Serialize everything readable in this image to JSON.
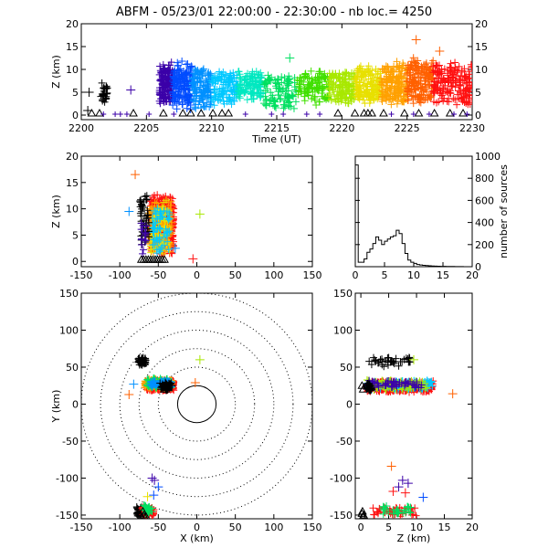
{
  "title": "ABFM - 05/23/01 22:00:00 - 22:30:00 - nb loc.=    4250",
  "chart_data": [
    {
      "type": "scatter",
      "id": "time-height",
      "title": "ABFM - 05/23/01 22:00:00 - 22:30:00 - nb loc.=    4250",
      "xlabel": "Time (UT)",
      "ylabel": "Z (km)",
      "xlim": [
        2200,
        2230
      ],
      "ylim": [
        -1,
        20
      ],
      "xticks": [
        2200,
        2205,
        2210,
        2215,
        2220,
        2225,
        2230
      ],
      "yticks": [
        0,
        5,
        10,
        15,
        20
      ],
      "color_by_time": true,
      "clusters": [
        {
          "x": [
            2201.5,
            2202.0
          ],
          "y": [
            2,
            8
          ],
          "n": 25,
          "color": "#000000"
        },
        {
          "x": [
            2206.0,
            2207.0
          ],
          "y": [
            2,
            12
          ],
          "n": 150,
          "color": "#3b00a8"
        },
        {
          "x": [
            2207.0,
            2208.5
          ],
          "y": [
            1,
            12
          ],
          "n": 150,
          "color": "#004cff"
        },
        {
          "x": [
            2208.5,
            2210.0
          ],
          "y": [
            1,
            11
          ],
          "n": 130,
          "color": "#0090ff"
        },
        {
          "x": [
            2210.0,
            2212.0
          ],
          "y": [
            2,
            10
          ],
          "n": 120,
          "color": "#00c8ff"
        },
        {
          "x": [
            2212.0,
            2214.0
          ],
          "y": [
            3,
            10
          ],
          "n": 110,
          "color": "#00e8c0"
        },
        {
          "x": [
            2214.0,
            2216.5
          ],
          "y": [
            1,
            9
          ],
          "n": 100,
          "color": "#00e060"
        },
        {
          "x": [
            2216.5,
            2219.0
          ],
          "y": [
            2,
            10
          ],
          "n": 110,
          "color": "#40e000"
        },
        {
          "x": [
            2219.0,
            2221.0
          ],
          "y": [
            2,
            10
          ],
          "n": 130,
          "color": "#a8e800"
        },
        {
          "x": [
            2221.0,
            2223.0
          ],
          "y": [
            2,
            11
          ],
          "n": 150,
          "color": "#e8e000"
        },
        {
          "x": [
            2223.0,
            2225.0
          ],
          "y": [
            2,
            12
          ],
          "n": 170,
          "color": "#ffa000"
        },
        {
          "x": [
            2225.0,
            2227.0
          ],
          "y": [
            2,
            13
          ],
          "n": 170,
          "color": "#ff6000"
        },
        {
          "x": [
            2227.0,
            2230.0
          ],
          "y": [
            2,
            12
          ],
          "n": 170,
          "color": "#ff1010"
        }
      ],
      "points": [
        {
          "x": 2200.6,
          "y": 5,
          "color": "#000000"
        },
        {
          "x": 2200.5,
          "y": 1,
          "color": "#000000"
        },
        {
          "x": 2203.8,
          "y": 5.5,
          "color": "#3b00a8"
        },
        {
          "x": 2225.7,
          "y": 16.5,
          "color": "#ff6000"
        },
        {
          "x": 2227.5,
          "y": 14,
          "color": "#ff6000"
        },
        {
          "x": 2216.0,
          "y": 12.5,
          "color": "#00e060"
        }
      ],
      "stations_x": [
        2200.8,
        2201.4,
        2204.0,
        2206.3,
        2207.8,
        2208.4,
        2209.2,
        2210.1,
        2210.8,
        2211.3,
        2219.7,
        2221.0,
        2221.7,
        2222.0,
        2222.3,
        2223.2,
        2224.8,
        2225.9,
        2227.1,
        2228.3,
        2229.3
      ],
      "ground_x": [
        2201.7,
        2202.6,
        2203.0,
        2203.5,
        2205.2,
        2207.1,
        2212.6,
        2214.6,
        2215.5,
        2217.3,
        2218.3,
        2223.8,
        2225.5,
        2226.7,
        2228.6,
        2229.6
      ]
    },
    {
      "type": "scatter",
      "id": "xz-projection",
      "xlabel": "",
      "ylabel": "Z (km)",
      "xlim": [
        -150,
        150
      ],
      "ylim": [
        -1,
        20
      ],
      "xticks": [
        -150,
        -100,
        -50,
        0,
        50,
        100,
        150
      ],
      "yticks": [
        0,
        5,
        10,
        15,
        20
      ],
      "clusters": [
        {
          "x": [
            -60,
            -30
          ],
          "y": [
            1,
            13
          ],
          "n": 400,
          "color": "#ff1010"
        },
        {
          "x": [
            -62,
            -32
          ],
          "y": [
            1,
            12
          ],
          "n": 160,
          "color": "#ffa000"
        },
        {
          "x": [
            -60,
            -35
          ],
          "y": [
            1,
            12
          ],
          "n": 80,
          "color": "#e8e000"
        },
        {
          "x": [
            -58,
            -35
          ],
          "y": [
            1,
            11
          ],
          "n": 60,
          "color": "#00c8ff"
        },
        {
          "x": [
            -74,
            -62
          ],
          "y": [
            2,
            14
          ],
          "n": 45,
          "color": "#000000"
        },
        {
          "x": [
            -74,
            -64
          ],
          "y": [
            1,
            8
          ],
          "n": 15,
          "color": "#3b00a8"
        }
      ],
      "points": [
        {
          "x": -80,
          "y": 16.5,
          "color": "#ff6000"
        },
        {
          "x": -88,
          "y": 9.5,
          "color": "#0090ff"
        },
        {
          "x": 4,
          "y": 9,
          "color": "#a8e800"
        },
        {
          "x": -28,
          "y": 2.5,
          "color": "#0090ff"
        },
        {
          "x": -5,
          "y": 0.5,
          "color": "#ff1010"
        }
      ],
      "stations_x": [
        -72,
        -69,
        -66,
        -63,
        -60,
        -57,
        -54,
        -51,
        -48,
        -45,
        -42
      ]
    },
    {
      "type": "histogram",
      "id": "source-altitude-histogram",
      "xlabel": "",
      "ylabel": "number of sources",
      "xlim": [
        0,
        20
      ],
      "ylim": [
        0,
        1000
      ],
      "xticks": [
        0,
        5,
        10,
        15,
        20
      ],
      "yticks": [
        0,
        200,
        400,
        600,
        800,
        1000
      ],
      "bin_width": 0.5,
      "bins_start": 0,
      "values": [
        920,
        40,
        40,
        70,
        130,
        160,
        210,
        270,
        240,
        200,
        230,
        250,
        270,
        280,
        330,
        300,
        210,
        120,
        60,
        40,
        30,
        20,
        15,
        12,
        10,
        8,
        6,
        5,
        4,
        3,
        3,
        2,
        2,
        2,
        1,
        1,
        1,
        0,
        0,
        0
      ]
    },
    {
      "type": "scatter",
      "id": "plan-view-xy",
      "xlabel": "X (km)",
      "ylabel": "Y (km)",
      "xlim": [
        -150,
        150
      ],
      "ylim": [
        -155,
        150
      ],
      "xticks": [
        -150,
        -100,
        -50,
        0,
        50,
        100,
        150
      ],
      "yticks": [
        -150,
        -100,
        -50,
        0,
        50,
        100,
        150
      ],
      "range_rings_km": [
        25,
        50,
        75,
        100,
        125,
        150
      ],
      "clusters": [
        {
          "x": [
            -65,
            -30
          ],
          "y": [
            18,
            33
          ],
          "n": 380,
          "color": "#ff1010"
        },
        {
          "x": [
            -68,
            -32
          ],
          "y": [
            20,
            35
          ],
          "n": 120,
          "color": "#ffa000"
        },
        {
          "x": [
            -65,
            -32
          ],
          "y": [
            20,
            36
          ],
          "n": 70,
          "color": "#00e060"
        },
        {
          "x": [
            -60,
            -32
          ],
          "y": [
            22,
            34
          ],
          "n": 50,
          "color": "#0090ff"
        },
        {
          "x": [
            -48,
            -32
          ],
          "y": [
            18,
            30
          ],
          "n": 40,
          "color": "#000000"
        },
        {
          "x": [
            -76,
            -66
          ],
          "y": [
            52,
            64
          ],
          "n": 40,
          "color": "#000000"
        },
        {
          "x": [
            -78,
            -65
          ],
          "y": [
            -152,
            -138
          ],
          "n": 50,
          "color": "#000000"
        },
        {
          "x": [
            -72,
            -55
          ],
          "y": [
            -152,
            -138
          ],
          "n": 60,
          "color": "#ff1010"
        },
        {
          "x": [
            -70,
            -58
          ],
          "y": [
            -150,
            -136
          ],
          "n": 25,
          "color": "#00e060"
        }
      ],
      "points": [
        {
          "x": -58,
          "y": -100,
          "color": "#3b00a8"
        },
        {
          "x": -55,
          "y": -103,
          "color": "#3b00a8"
        },
        {
          "x": -50,
          "y": -112,
          "color": "#004cff"
        },
        {
          "x": -56,
          "y": -123,
          "color": "#004cff"
        },
        {
          "x": -2,
          "y": 29,
          "color": "#ff6000"
        },
        {
          "x": 4,
          "y": 60,
          "color": "#a8e800"
        },
        {
          "x": -88,
          "y": 13,
          "color": "#ff6000"
        },
        {
          "x": -82,
          "y": 27,
          "color": "#0090ff"
        },
        {
          "x": -64,
          "y": -125,
          "color": "#e8e000"
        }
      ],
      "stations": [
        {
          "x": -71,
          "y": 61
        },
        {
          "x": -68,
          "y": 57
        },
        {
          "x": -70,
          "y": 55
        },
        {
          "x": -37,
          "y": 22
        },
        {
          "x": -40,
          "y": 25
        },
        {
          "x": -42,
          "y": 20
        },
        {
          "x": -72,
          "y": -153
        },
        {
          "x": -69,
          "y": -150
        },
        {
          "x": -74,
          "y": -148
        },
        {
          "x": -66,
          "y": -152
        },
        {
          "x": -70,
          "y": -145
        }
      ]
    },
    {
      "type": "scatter",
      "id": "zy-projection",
      "xlabel": "Z (km)",
      "ylabel": "",
      "xlim": [
        -1,
        20
      ],
      "ylim": [
        -155,
        150
      ],
      "xticks": [
        0,
        5,
        10,
        15,
        20
      ],
      "yticks": [
        -150,
        -100,
        -50,
        0,
        50,
        100,
        150
      ],
      "clusters": [
        {
          "x": [
            1,
            13
          ],
          "y": [
            16,
            32
          ],
          "n": 380,
          "color": "#ff1010"
        },
        {
          "x": [
            1,
            13
          ],
          "y": [
            18,
            34
          ],
          "n": 120,
          "color": "#00c8ff"
        },
        {
          "x": [
            1,
            12
          ],
          "y": [
            18,
            34
          ],
          "n": 80,
          "color": "#a8e800"
        },
        {
          "x": [
            1,
            11
          ],
          "y": [
            20,
            33
          ],
          "n": 60,
          "color": "#3b00a8"
        },
        {
          "x": [
            1,
            9
          ],
          "y": [
            50,
            65
          ],
          "n": 40,
          "color": "#000000"
        },
        {
          "x": [
            1,
            2
          ],
          "y": [
            15,
            30
          ],
          "n": 25,
          "color": "#000000"
        },
        {
          "x": [
            2,
            10
          ],
          "y": [
            -152,
            -138
          ],
          "n": 50,
          "color": "#ff1010"
        },
        {
          "x": [
            4,
            9
          ],
          "y": [
            -150,
            -136
          ],
          "n": 30,
          "color": "#00e060"
        }
      ],
      "points": [
        {
          "x": 16.5,
          "y": 14,
          "color": "#ff6000"
        },
        {
          "x": 9.5,
          "y": 60,
          "color": "#a8e800"
        },
        {
          "x": 5.5,
          "y": -84,
          "color": "#ff6000"
        },
        {
          "x": 7.5,
          "y": -103,
          "color": "#3b00a8"
        },
        {
          "x": 6.8,
          "y": -112,
          "color": "#3b00a8"
        },
        {
          "x": 8.5,
          "y": -107,
          "color": "#3b00a8"
        },
        {
          "x": 11.2,
          "y": -126,
          "color": "#004cff"
        },
        {
          "x": 5.8,
          "y": -118,
          "color": "#ff1010"
        },
        {
          "x": 8.0,
          "y": -120,
          "color": "#ff1010"
        }
      ],
      "stations": [
        {
          "x": 0.2,
          "y": -148
        },
        {
          "x": 0.4,
          "y": -153
        },
        {
          "x": 0.3,
          "y": -145
        },
        {
          "x": 0.5,
          "y": -150
        },
        {
          "x": 0.2,
          "y": 25
        },
        {
          "x": 0.4,
          "y": 20
        }
      ]
    }
  ]
}
